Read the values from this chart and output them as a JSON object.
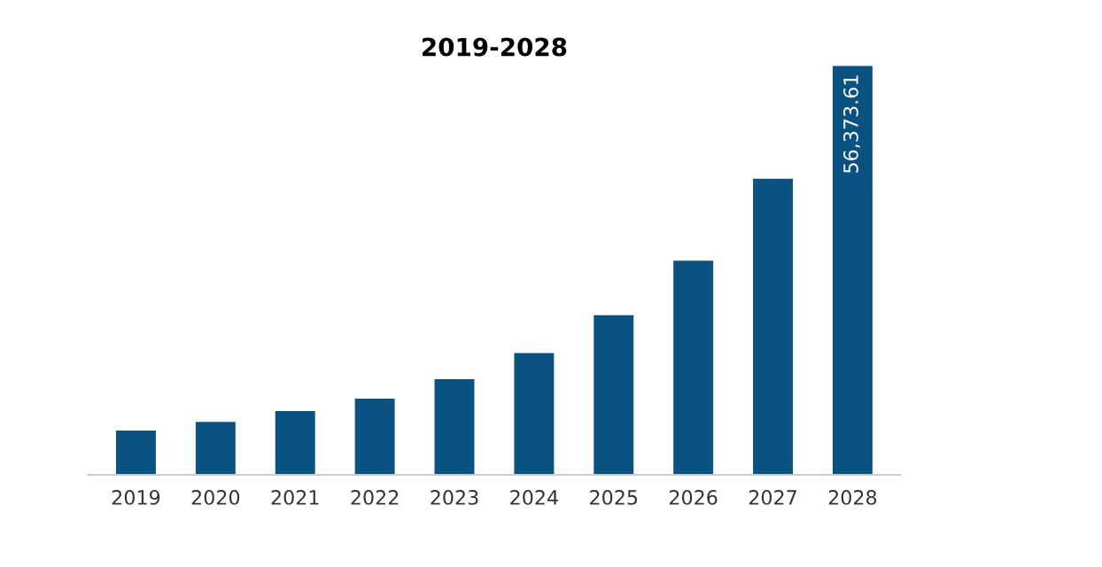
{
  "chart_data": {
    "type": "bar",
    "title": "2019-2028",
    "categories": [
      "2019",
      "2020",
      "2021",
      "2022",
      "2023",
      "2024",
      "2025",
      "2026",
      "2027",
      "2028"
    ],
    "values": [
      6100,
      7300,
      8800,
      10500,
      13200,
      16800,
      22000,
      29500,
      40800,
      56373.61
    ],
    "value_labels": [
      null,
      null,
      null,
      null,
      null,
      null,
      null,
      null,
      null,
      "56,373.61"
    ],
    "color": "#0a5282",
    "grid": false,
    "legend": false
  }
}
